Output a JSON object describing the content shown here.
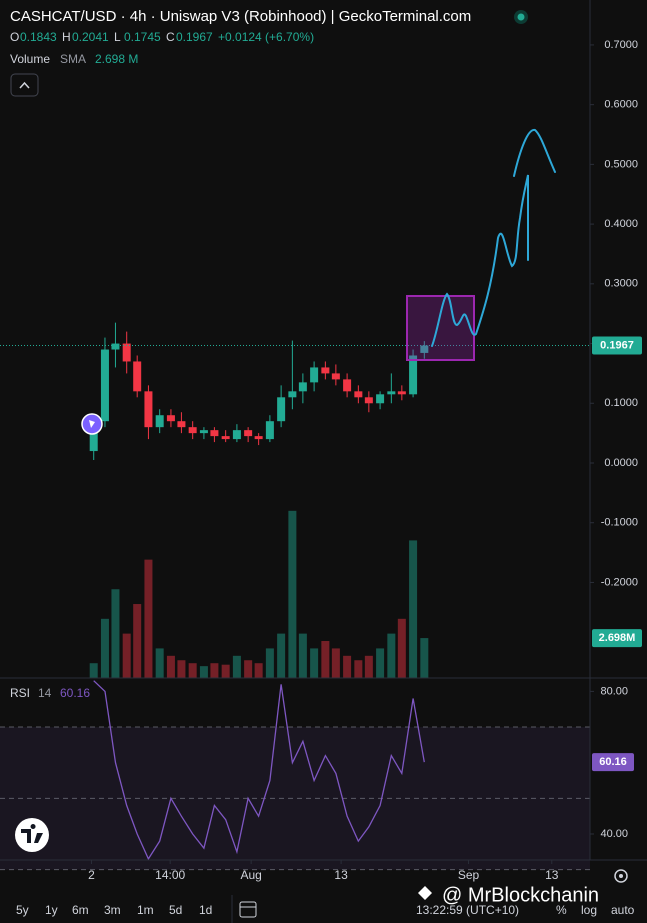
{
  "header": {
    "title": "CASHCAT/USD · 4h · Uniswap V3 (Robinhood) | GeckoTerminal.com",
    "ohlc": [
      {
        "key": "O",
        "value": "0.1843"
      },
      {
        "key": "H",
        "value": "0.2041"
      },
      {
        "key": "L",
        "value": "0.1745"
      },
      {
        "key": "C",
        "value": "0.1967"
      }
    ],
    "change": "+0.0124 (+6.70%)",
    "volume_name": "Volume",
    "volume_sma": "SMA",
    "volume_value": "2.698 M"
  },
  "chart_data": [
    {
      "type": "candlestick",
      "up_color": "#22ab94",
      "down_color": "#f23645",
      "x": [
        -21,
        -19.5,
        -18.1,
        -16.6,
        -15.2,
        -13.7,
        -12.2,
        -10.7,
        -9.3,
        -7.8,
        -6.3,
        -4.9,
        -3.4,
        -1.9,
        -0.4,
        1.0,
        2.5,
        4.0,
        5.5,
        6.9,
        8.4,
        9.9,
        11.3,
        12.8,
        14.3,
        15.7,
        17.2,
        18.7,
        20.1,
        21.6,
        23.1
      ],
      "open": [
        0.02,
        0.07,
        0.19,
        0.2,
        0.17,
        0.12,
        0.06,
        0.08,
        0.07,
        0.06,
        0.05,
        0.055,
        0.045,
        0.04,
        0.055,
        0.045,
        0.04,
        0.07,
        0.11,
        0.12,
        0.135,
        0.16,
        0.15,
        0.14,
        0.12,
        0.11,
        0.1,
        0.115,
        0.12,
        0.115,
        0.1843
      ],
      "high": [
        0.07,
        0.21,
        0.235,
        0.22,
        0.18,
        0.13,
        0.09,
        0.09,
        0.085,
        0.07,
        0.06,
        0.06,
        0.055,
        0.065,
        0.06,
        0.05,
        0.08,
        0.13,
        0.205,
        0.15,
        0.17,
        0.17,
        0.165,
        0.15,
        0.13,
        0.12,
        0.12,
        0.15,
        0.13,
        0.19,
        0.2041
      ],
      "low": [
        0.005,
        0.06,
        0.16,
        0.15,
        0.11,
        0.04,
        0.05,
        0.06,
        0.05,
        0.04,
        0.04,
        0.035,
        0.035,
        0.035,
        0.035,
        0.03,
        0.035,
        0.06,
        0.09,
        0.1,
        0.12,
        0.14,
        0.13,
        0.11,
        0.1,
        0.085,
        0.09,
        0.1,
        0.105,
        0.11,
        0.1745
      ],
      "close": [
        0.07,
        0.19,
        0.2,
        0.17,
        0.12,
        0.06,
        0.08,
        0.07,
        0.06,
        0.05,
        0.055,
        0.045,
        0.04,
        0.055,
        0.045,
        0.04,
        0.07,
        0.11,
        0.12,
        0.135,
        0.16,
        0.15,
        0.14,
        0.12,
        0.11,
        0.1,
        0.115,
        0.12,
        0.115,
        0.18,
        0.1967
      ],
      "volume": [
        1,
        4,
        6,
        3,
        5,
        8,
        2,
        1.5,
        1.2,
        1,
        0.8,
        1,
        0.9,
        1.5,
        1.2,
        1,
        2,
        3,
        11.3,
        3,
        2,
        2.5,
        2,
        1.5,
        1.2,
        1.5,
        2,
        3,
        4,
        9.3,
        2.698
      ],
      "volume_label": "2.698M",
      "volume_ylim": [
        0,
        43.8
      ],
      "xlim": [
        -33.5,
        45.2
      ],
      "ylim": [
        -0.36,
        0.725
      ],
      "yticks": [
        {
          "value": -0.2,
          "label": "-0.2000"
        },
        {
          "value": -0.1,
          "label": "-0.1000"
        },
        {
          "value": 0,
          "label": "0.0000"
        },
        {
          "value": 0.1,
          "label": "0.1000"
        },
        {
          "value": 0.2,
          "label": "0.2000"
        },
        {
          "value": 0.3,
          "label": "0.3000"
        },
        {
          "value": 0.4,
          "label": "0.4000"
        },
        {
          "value": 0.5,
          "label": "0.5000"
        },
        {
          "value": 0.6,
          "label": "0.6000"
        },
        {
          "value": 0.7,
          "label": "0.7000"
        }
      ]
    },
    {
      "type": "line",
      "title": "RSI",
      "length": "14",
      "color": "#7e57c2",
      "x": [
        -21,
        -19.5,
        -18.1,
        -16.6,
        -15.2,
        -13.7,
        -12.2,
        -10.7,
        -9.3,
        -7.8,
        -6.3,
        -4.9,
        -3.4,
        -1.9,
        -0.4,
        1.0,
        2.5,
        4.0,
        5.5,
        6.9,
        8.4,
        9.9,
        11.3,
        12.8,
        14.3,
        15.7,
        17.2,
        18.7,
        20.1,
        21.6,
        23.1
      ],
      "values": [
        83,
        80,
        60,
        48,
        40,
        33,
        38,
        50,
        45,
        40,
        36,
        48,
        44,
        35,
        50,
        45,
        55,
        82,
        60,
        66,
        55,
        62,
        57,
        45,
        38,
        42,
        48,
        62,
        57,
        78,
        60.16
      ],
      "bands": [
        70,
        50,
        30
      ],
      "xlim": [
        -33.5,
        45.2
      ],
      "ylim": [
        32.7,
        83.2
      ],
      "yticks": [
        {
          "value": 40,
          "label": "40.00"
        },
        {
          "value": 80,
          "label": "80.00"
        }
      ],
      "xticks": [
        {
          "value": -21.3,
          "label": "2"
        },
        {
          "value": -10.8,
          "label": "14:00"
        },
        {
          "value": 0,
          "label": "Aug"
        },
        {
          "value": 12,
          "label": "13"
        },
        {
          "value": 29,
          "label": "Sep"
        },
        {
          "value": 40.1,
          "label": "13"
        }
      ]
    }
  ],
  "toolbar": {
    "ranges": [
      "5y",
      "1y",
      "6m",
      "3m",
      "1m",
      "5d",
      "1d"
    ],
    "time": "13:22:59 (UTC+10)",
    "percent": "%",
    "log": "log",
    "auto": "auto"
  },
  "watermark": "@ MrBlockchanin"
}
